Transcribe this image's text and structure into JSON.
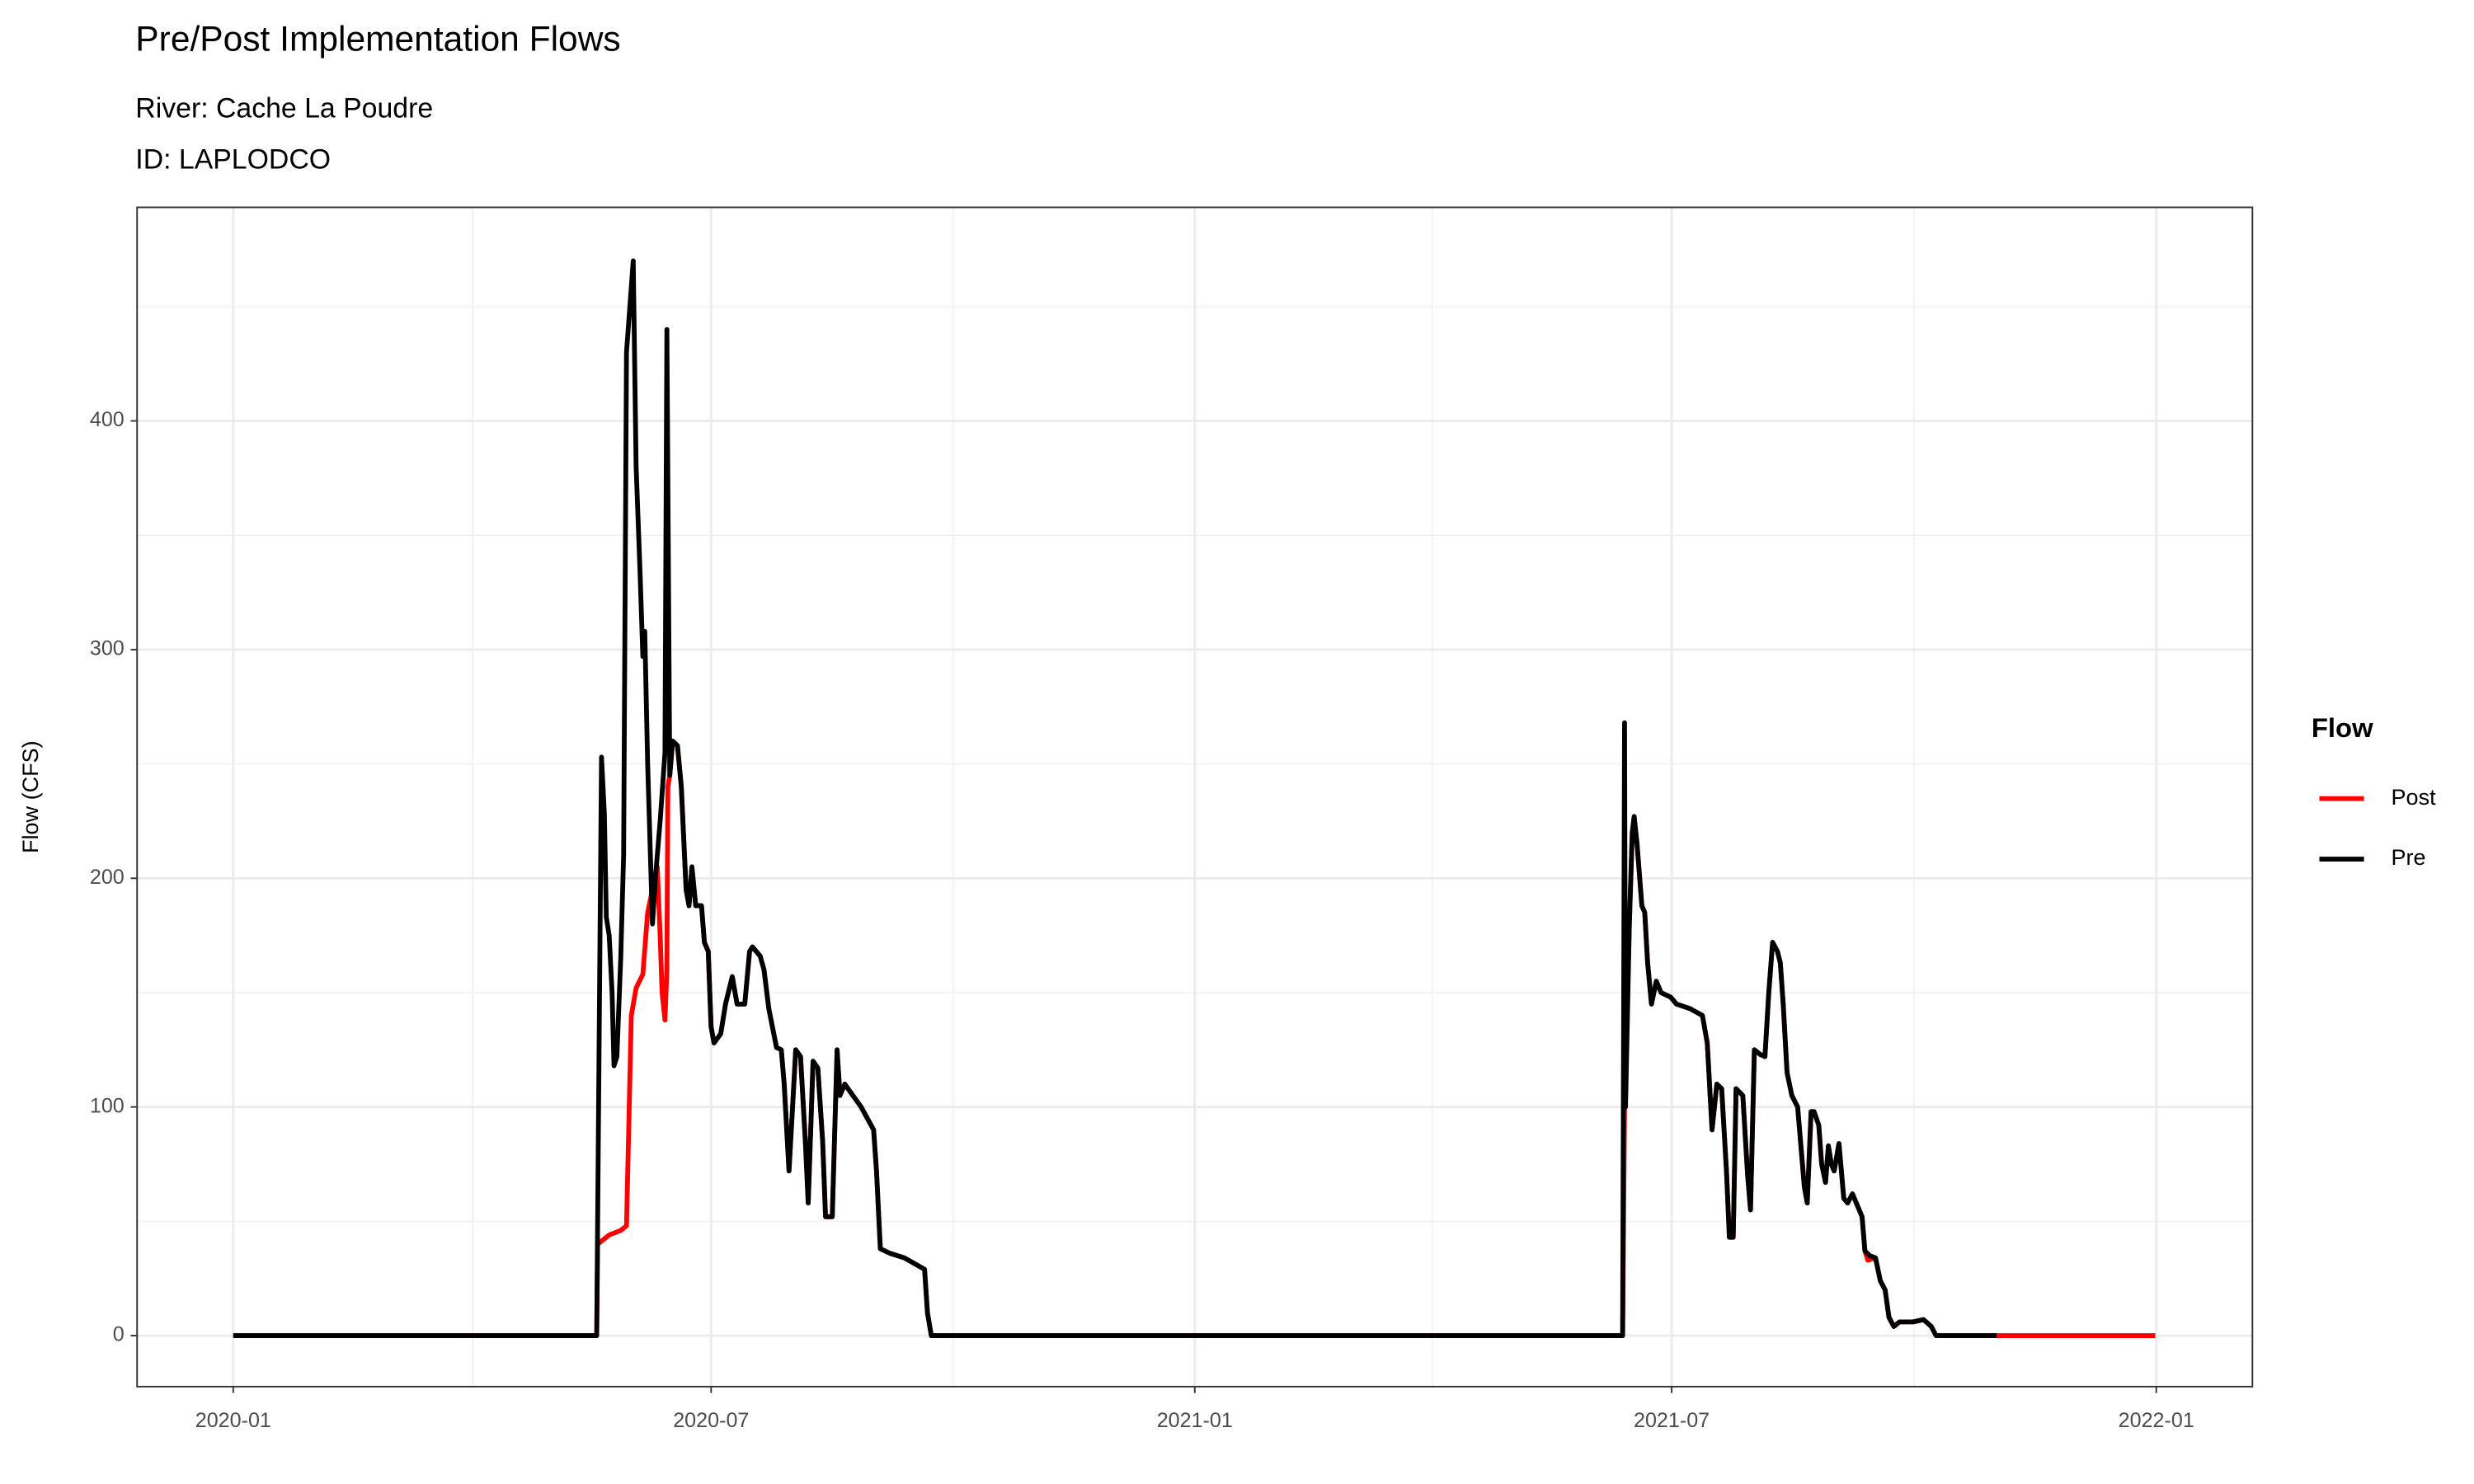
{
  "chart_data": {
    "type": "line",
    "title": "Pre/Post Implementation Flows",
    "subtitle": [
      "River: Cache La Poudre",
      "ID: LAPLODCO"
    ],
    "y_label": "Flow (CFS)",
    "legend_title": "Flow",
    "legend_position": "right",
    "grid": true,
    "xlim": [
      2019.9,
      2022.1
    ],
    "ylim": [
      -22.3,
      493.4
    ],
    "xticks": [
      {
        "value": 2020.0,
        "label": "2020-01"
      },
      {
        "value": 2020.497,
        "label": "2020-07"
      },
      {
        "value": 2021.0,
        "label": "2021-01"
      },
      {
        "value": 2021.496,
        "label": "2021-07"
      },
      {
        "value": 2022.0,
        "label": "2022-01"
      }
    ],
    "yticks": [
      0,
      100,
      200,
      300,
      400
    ],
    "x_minor_grid": [
      2020.249,
      2020.749,
      2021.247,
      2021.748
    ],
    "y_minor_grid": [
      50,
      150,
      250,
      350,
      450
    ],
    "series": [
      {
        "name": "Post",
        "color": "#ff0000",
        "x": [
          2020.0,
          2020.378,
          2020.379,
          2020.391,
          2020.403,
          2020.409,
          2020.414,
          2020.419,
          2020.426,
          2020.431,
          2020.436,
          2020.441,
          2020.444,
          2020.446,
          2020.449,
          2020.451,
          2020.452,
          2020.454,
          2020.457,
          2020.462,
          2020.466,
          2020.471,
          2020.474,
          2020.477,
          2020.481,
          2020.487,
          2020.49,
          2020.494,
          2020.497,
          2020.5,
          2020.507,
          2020.512,
          2020.519,
          2020.524,
          2020.532,
          2020.537,
          2020.54,
          2020.548,
          2020.552,
          2020.557,
          2020.565,
          2020.57,
          2020.573,
          2020.578,
          2020.585,
          2020.59,
          2020.595,
          2020.598,
          2020.603,
          2020.608,
          2020.613,
          2020.616,
          2020.623,
          2020.628,
          2020.631,
          2020.636,
          2020.653,
          2020.666,
          2020.669,
          2020.673,
          2020.683,
          2020.698,
          2020.719,
          2020.722,
          2020.726,
          2021.445,
          2021.447,
          2021.452,
          2021.455,
          2021.457,
          2021.46,
          2021.465,
          2021.468,
          2021.471,
          2021.475,
          2021.48,
          2021.485,
          2021.495,
          2021.501,
          2021.515,
          2021.528,
          2021.533,
          2021.538,
          2021.543,
          2021.548,
          2021.553,
          2021.556,
          2021.56,
          2021.563,
          2021.57,
          2021.575,
          2021.578,
          2021.582,
          2021.588,
          2021.593,
          2021.597,
          2021.601,
          2021.606,
          2021.609,
          2021.612,
          2021.616,
          2021.621,
          2021.627,
          2021.631,
          2021.634,
          2021.637,
          2021.641,
          2021.644,
          2021.649,
          2021.652,
          2021.656,
          2021.659,
          2021.662,
          2021.665,
          2021.67,
          2021.675,
          2021.679,
          2021.684,
          2021.694,
          2021.697,
          2021.7,
          2021.708,
          2021.713,
          2021.718,
          2021.722,
          2021.727,
          2021.733,
          2021.747,
          2021.758,
          2021.766,
          2021.771,
          2021.834,
          2021.999
        ],
        "values": [
          0,
          0,
          40,
          44,
          46,
          48,
          140,
          152,
          158,
          185,
          195,
          205,
          175,
          150,
          138,
          160,
          240,
          245,
          260,
          258,
          240,
          195,
          188,
          205,
          188,
          188,
          172,
          168,
          135,
          128,
          132,
          145,
          157,
          145,
          145,
          168,
          170,
          166,
          160,
          143,
          126,
          125,
          110,
          72,
          125,
          122,
          85,
          58,
          120,
          117,
          85,
          52,
          52,
          125,
          105,
          110,
          100,
          90,
          72,
          38,
          36,
          34,
          29,
          10,
          0,
          0,
          100,
          180,
          220,
          227,
          215,
          188,
          185,
          163,
          145,
          155,
          150,
          148,
          145,
          143,
          140,
          128,
          90,
          110,
          108,
          72,
          43,
          43,
          108,
          105,
          70,
          55,
          125,
          123,
          122,
          150,
          172,
          168,
          163,
          145,
          115,
          105,
          100,
          80,
          65,
          58,
          98,
          98,
          92,
          75,
          67,
          83,
          75,
          72,
          84,
          60,
          58,
          62,
          52,
          37,
          33,
          34,
          24,
          20,
          8,
          4,
          6,
          6,
          7,
          4,
          0,
          0,
          0
        ]
      },
      {
        "name": "Pre",
        "color": "#000000",
        "x": [
          2020.0,
          2020.378,
          2020.383,
          2020.386,
          2020.388,
          2020.391,
          2020.394,
          2020.396,
          2020.399,
          2020.403,
          2020.406,
          2020.409,
          2020.416,
          2020.419,
          2020.423,
          2020.426,
          2020.428,
          2020.431,
          2020.436,
          2020.439,
          2020.444,
          2020.449,
          2020.451,
          2020.454,
          2020.457,
          2020.462,
          2020.466,
          2020.471,
          2020.474,
          2020.477,
          2020.481,
          2020.487,
          2020.49,
          2020.494,
          2020.497,
          2020.5,
          2020.507,
          2020.512,
          2020.519,
          2020.524,
          2020.532,
          2020.537,
          2020.54,
          2020.548,
          2020.552,
          2020.557,
          2020.565,
          2020.57,
          2020.573,
          2020.578,
          2020.585,
          2020.59,
          2020.595,
          2020.598,
          2020.603,
          2020.608,
          2020.613,
          2020.616,
          2020.623,
          2020.628,
          2020.631,
          2020.636,
          2020.653,
          2020.666,
          2020.669,
          2020.673,
          2020.683,
          2020.698,
          2020.719,
          2020.722,
          2020.726,
          2021.445,
          2021.447,
          2021.448,
          2021.452,
          2021.455,
          2021.457,
          2021.46,
          2021.465,
          2021.468,
          2021.471,
          2021.475,
          2021.48,
          2021.485,
          2021.495,
          2021.501,
          2021.515,
          2021.528,
          2021.533,
          2021.538,
          2021.543,
          2021.548,
          2021.553,
          2021.556,
          2021.56,
          2021.563,
          2021.57,
          2021.575,
          2021.578,
          2021.582,
          2021.588,
          2021.593,
          2021.597,
          2021.601,
          2021.606,
          2021.609,
          2021.612,
          2021.616,
          2021.621,
          2021.627,
          2021.631,
          2021.634,
          2021.637,
          2021.641,
          2021.644,
          2021.649,
          2021.652,
          2021.656,
          2021.659,
          2021.662,
          2021.665,
          2021.67,
          2021.675,
          2021.679,
          2021.684,
          2021.694,
          2021.697,
          2021.702,
          2021.708,
          2021.713,
          2021.718,
          2021.722,
          2021.727,
          2021.733,
          2021.747,
          2021.758,
          2021.766,
          2021.771,
          2021.834
        ],
        "values": [
          0,
          0,
          253,
          228,
          183,
          175,
          150,
          118,
          122,
          165,
          210,
          430,
          470,
          380,
          335,
          297,
          308,
          250,
          180,
          200,
          225,
          255,
          440,
          245,
          260,
          258,
          240,
          195,
          188,
          205,
          188,
          188,
          172,
          168,
          135,
          128,
          132,
          145,
          157,
          145,
          145,
          168,
          170,
          166,
          160,
          143,
          126,
          125,
          110,
          72,
          125,
          122,
          85,
          58,
          120,
          117,
          85,
          52,
          52,
          125,
          105,
          110,
          100,
          90,
          72,
          38,
          36,
          34,
          29,
          10,
          0,
          0,
          268,
          100,
          180,
          220,
          227,
          215,
          188,
          185,
          163,
          145,
          155,
          150,
          148,
          145,
          143,
          140,
          128,
          90,
          110,
          108,
          72,
          43,
          43,
          108,
          105,
          70,
          55,
          125,
          123,
          122,
          150,
          172,
          168,
          163,
          145,
          115,
          105,
          100,
          80,
          65,
          58,
          98,
          98,
          92,
          75,
          67,
          83,
          75,
          72,
          84,
          60,
          58,
          62,
          52,
          37,
          35,
          34,
          24,
          20,
          8,
          4,
          6,
          6,
          7,
          4,
          0,
          0
        ]
      }
    ]
  }
}
